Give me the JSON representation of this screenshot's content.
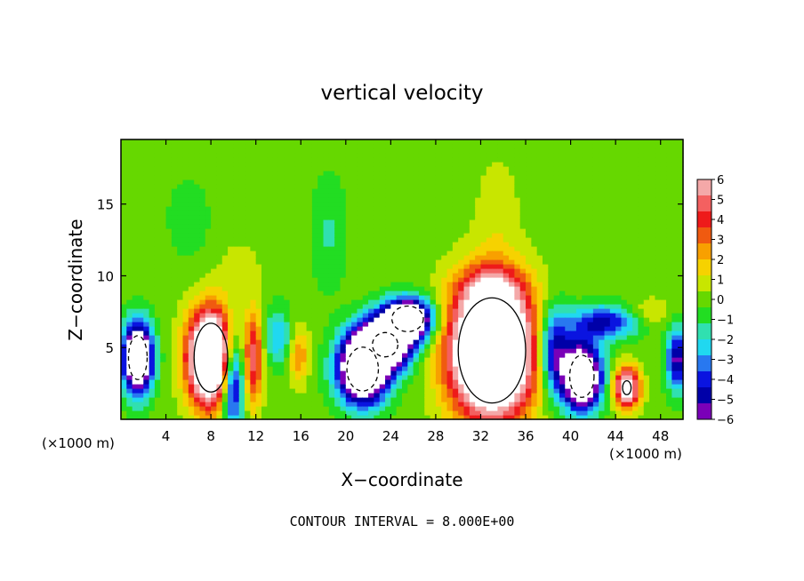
{
  "chart_data": {
    "type": "heatmap",
    "title": "vertical velocity",
    "xlabel": "X−coordinate",
    "ylabel": "Z−coordinate",
    "x_unit_left": "(×1000 m)",
    "x_unit_right": "(×1000 m)",
    "footer": "CONTOUR INTERVAL = 8.000E+00",
    "xlim": [
      0,
      50
    ],
    "ylim": [
      0,
      19.5
    ],
    "xticks": [
      4,
      8,
      12,
      16,
      20,
      24,
      28,
      32,
      36,
      40,
      44,
      48
    ],
    "xtick_labels": [
      "4",
      "8",
      "12",
      "16",
      "20",
      "24",
      "28",
      "32",
      "36",
      "40",
      "44",
      "48"
    ],
    "yticks": [
      5,
      10,
      15
    ],
    "ytick_labels": [
      "5",
      "10",
      "15"
    ],
    "colorbar": {
      "levels": [
        6,
        5,
        4,
        3,
        2,
        1,
        0,
        -1,
        -2,
        -3,
        -4,
        -5,
        -6
      ],
      "labels": [
        "6",
        "5",
        "4",
        "3",
        "2",
        "1",
        "0",
        "−1",
        "−2",
        "−3",
        "−4",
        "−5",
        "−6"
      ],
      "colors": [
        "#f4a8a8",
        "#f46060",
        "#ee1a1a",
        "#f05a10",
        "#f8a000",
        "#f6d200",
        "#c8e600",
        "#66d800",
        "#22dd22",
        "#30e0b0",
        "#20d8f0",
        "#2878f0",
        "#0a14e0",
        "#0000a8",
        "#7a00b8"
      ]
    },
    "background_value": 0,
    "features": [
      {
        "name": "downdraft",
        "x": 1.5,
        "z": 4.3,
        "rx": 1.3,
        "rz": 2.4,
        "amp": -12
      },
      {
        "name": "updraft",
        "x": 8,
        "z": 4.3,
        "rx": 2.0,
        "rz": 3.2,
        "amp": 14
      },
      {
        "name": "downdraft",
        "x": 9.9,
        "z": 2.8,
        "rx": 1.0,
        "rz": 3.2,
        "amp": -8
      },
      {
        "name": "updraft",
        "x": 11.8,
        "z": 4.3,
        "rx": 0.8,
        "rz": 3.4,
        "amp": 5
      },
      {
        "name": "updraft",
        "x": 15.8,
        "z": 4.5,
        "rx": 0.9,
        "rz": 2.0,
        "amp": 3
      },
      {
        "name": "downdraft",
        "x": 14.0,
        "z": 5.8,
        "rx": 1.2,
        "rz": 2.0,
        "amp": -3
      },
      {
        "name": "downdraft",
        "x": 21.5,
        "z": 3.5,
        "rx": 2.2,
        "rz": 2.4,
        "amp": -12
      },
      {
        "name": "downdraft",
        "x": 25.5,
        "z": 7.0,
        "rx": 2.2,
        "rz": 1.4,
        "amp": -12
      },
      {
        "name": "downdraft",
        "x": 23.5,
        "z": 5.2,
        "rx": 2.4,
        "rz": 1.8,
        "amp": -10
      },
      {
        "name": "updraft",
        "x": 33.0,
        "z": 4.8,
        "rx": 3.6,
        "rz": 4.4,
        "amp": 16
      },
      {
        "name": "updraft",
        "x": 33.0,
        "z": 9.2,
        "rx": 2.8,
        "rz": 1.6,
        "amp": 3
      },
      {
        "name": "downdraft",
        "x": 38.5,
        "z": 4.8,
        "rx": 1.4,
        "rz": 3.0,
        "amp": -6
      },
      {
        "name": "downdraft",
        "x": 41.0,
        "z": 3.0,
        "rx": 1.7,
        "rz": 2.3,
        "amp": -12
      },
      {
        "name": "updraft",
        "x": 45.0,
        "z": 2.2,
        "rx": 1.1,
        "rz": 1.4,
        "amp": 9
      },
      {
        "name": "downdraft",
        "x": 43.0,
        "z": 6.8,
        "rx": 3.0,
        "rz": 1.2,
        "amp": -5
      },
      {
        "name": "downdraft",
        "x": 49.5,
        "z": 4.2,
        "rx": 1.0,
        "rz": 2.2,
        "amp": -6
      },
      {
        "name": "downdraft",
        "x": 18.5,
        "z": 13.0,
        "rx": 1.6,
        "rz": 4.0,
        "amp": -1.4
      },
      {
        "name": "downdraft",
        "x": 6.0,
        "z": 14.0,
        "rx": 2.0,
        "rz": 3.0,
        "amp": -1.0
      },
      {
        "name": "updraft",
        "x": 10.5,
        "z": 10.5,
        "rx": 1.6,
        "rz": 1.6,
        "amp": 1.2
      },
      {
        "name": "updraft",
        "x": 47.0,
        "z": 7.5,
        "rx": 2.0,
        "rz": 1.0,
        "amp": 1.5
      },
      {
        "name": "updraft",
        "x": 33.5,
        "z": 14.5,
        "rx": 2.0,
        "rz": 4.0,
        "amp": 0.9
      }
    ]
  }
}
